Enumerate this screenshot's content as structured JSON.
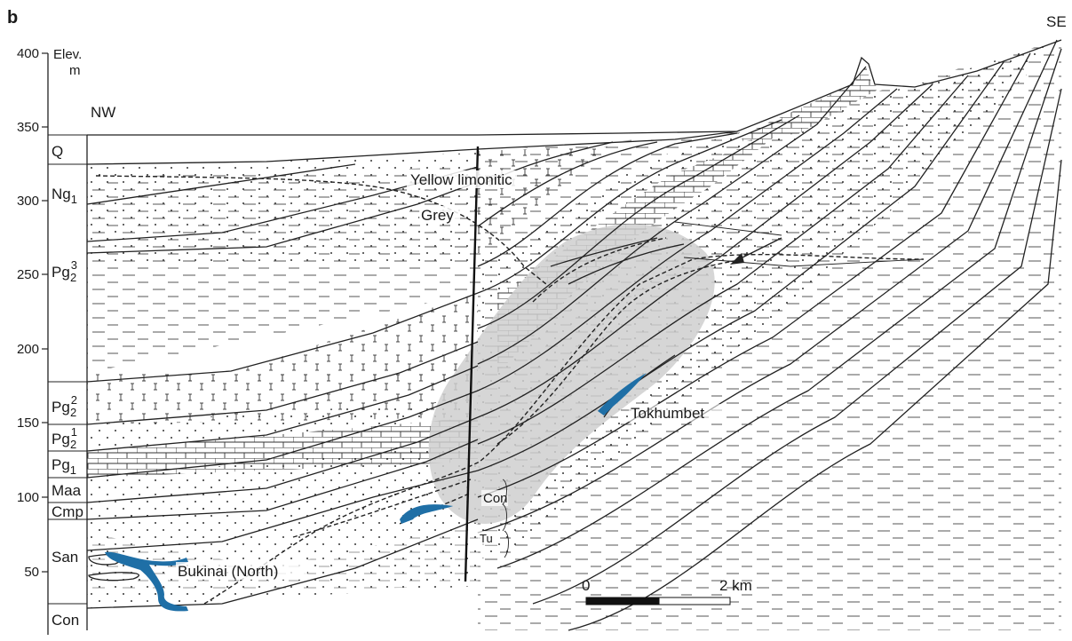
{
  "panel_label": "b",
  "axis": {
    "title_line1": "Elev.",
    "title_line2": "m",
    "ticks": [
      "400",
      "350",
      "300",
      "250",
      "200",
      "150",
      "100",
      "50"
    ],
    "tick_values": [
      400,
      350,
      300,
      250,
      200,
      150,
      100,
      50
    ]
  },
  "directions": {
    "left": "NW",
    "right": "SE"
  },
  "stratigraphy": [
    {
      "id": "q",
      "label": "Q"
    },
    {
      "id": "ng1",
      "label": "Ng",
      "sub": "1"
    },
    {
      "id": "pg23",
      "label": "Pg",
      "sub": "2",
      "sup": "3"
    },
    {
      "id": "pg22",
      "label": "Pg",
      "sub": "2",
      "sup": "2"
    },
    {
      "id": "pg21",
      "label": "Pg",
      "sub": "2",
      "sup": "1"
    },
    {
      "id": "pg1",
      "label": "Pg",
      "sub": "1"
    },
    {
      "id": "maa",
      "label": "Maa"
    },
    {
      "id": "cmp",
      "label": "Cmp"
    },
    {
      "id": "san",
      "label": "San"
    },
    {
      "id": "con",
      "label": "Con"
    }
  ],
  "annotations": {
    "yellow_limonitic": "Yellow limonitic",
    "grey": "Grey",
    "tokhumbet": "Tokhumbet",
    "bukinai": "Bukinai (North)",
    "con_bracket": "Con",
    "tu_bracket": "Tu"
  },
  "scale_bar": {
    "zero": "0",
    "end": "2 km"
  },
  "colors": {
    "ore_body": "#1f6fa6",
    "oxidation_halo": "#cfcfcf",
    "line": "#222222"
  }
}
